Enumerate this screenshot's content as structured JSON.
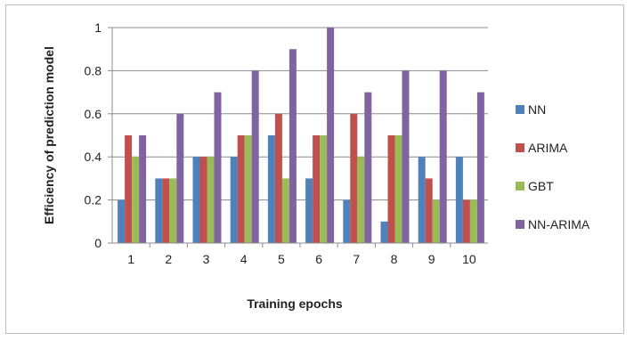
{
  "chart_data": {
    "type": "bar",
    "title": "",
    "xlabel": "Training epochs",
    "ylabel": "Efficiency of prediction model",
    "categories": [
      "1",
      "2",
      "3",
      "4",
      "5",
      "6",
      "7",
      "8",
      "9",
      "10"
    ],
    "ylim": [
      0,
      1
    ],
    "yticks": [
      "0",
      "0.2",
      "0.4",
      "0.6",
      "0.8",
      "1"
    ],
    "grid": "horizontal",
    "legend_position": "right",
    "series": [
      {
        "name": "NN",
        "color": "#4f81bd",
        "values": [
          0.2,
          0.3,
          0.4,
          0.4,
          0.5,
          0.3,
          0.2,
          0.1,
          0.4,
          0.4
        ]
      },
      {
        "name": "ARIMA",
        "color": "#c0504d",
        "values": [
          0.5,
          0.3,
          0.4,
          0.5,
          0.6,
          0.5,
          0.6,
          0.5,
          0.3,
          0.2
        ]
      },
      {
        "name": "GBT",
        "color": "#9bbb59",
        "values": [
          0.4,
          0.3,
          0.4,
          0.5,
          0.3,
          0.5,
          0.4,
          0.5,
          0.2,
          0.2
        ]
      },
      {
        "name": "NN-ARIMA",
        "color": "#8064a2",
        "values": [
          0.5,
          0.6,
          0.7,
          0.8,
          0.9,
          1.0,
          0.7,
          0.8,
          0.8,
          0.7
        ]
      }
    ]
  }
}
